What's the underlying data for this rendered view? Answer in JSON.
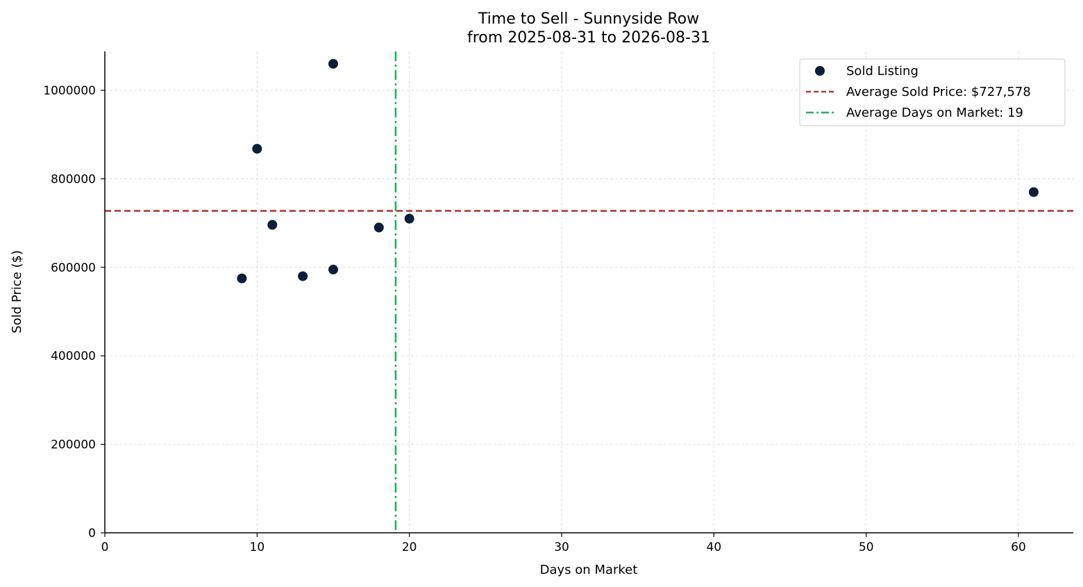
{
  "chart_data": {
    "type": "scatter",
    "title": "Time to Sell - Sunnyside Row",
    "subtitle": "from 2025-08-31 to 2026-08-31",
    "xlabel": "Days on Market",
    "ylabel": "Sold Price ($)",
    "xlim": [
      0,
      63.6
    ],
    "ylim": [
      0,
      1088000
    ],
    "xticks": [
      0,
      10,
      20,
      30,
      40,
      50,
      60
    ],
    "yticks": [
      0,
      200000,
      400000,
      600000,
      800000,
      1000000
    ],
    "grid": true,
    "legend_position": "top-right",
    "series": [
      {
        "name": "Sold Listing",
        "color": "#0b1f3a",
        "points": [
          {
            "x": 9,
            "y": 575000
          },
          {
            "x": 10,
            "y": 868000
          },
          {
            "x": 11,
            "y": 696000
          },
          {
            "x": 13,
            "y": 580000
          },
          {
            "x": 15,
            "y": 595000
          },
          {
            "x": 15,
            "y": 1060000
          },
          {
            "x": 18,
            "y": 690000
          },
          {
            "x": 20,
            "y": 710000
          },
          {
            "x": 61,
            "y": 770000
          }
        ]
      }
    ],
    "reference_lines": [
      {
        "name": "Average Sold Price: $727,578",
        "orientation": "horizontal",
        "value": 727578,
        "color": "#b03a2e",
        "style": "dashed"
      },
      {
        "name": "Average Days on Market: 19",
        "orientation": "vertical",
        "value": 19.1,
        "color": "#27ae60",
        "style": "dashdot"
      }
    ]
  }
}
